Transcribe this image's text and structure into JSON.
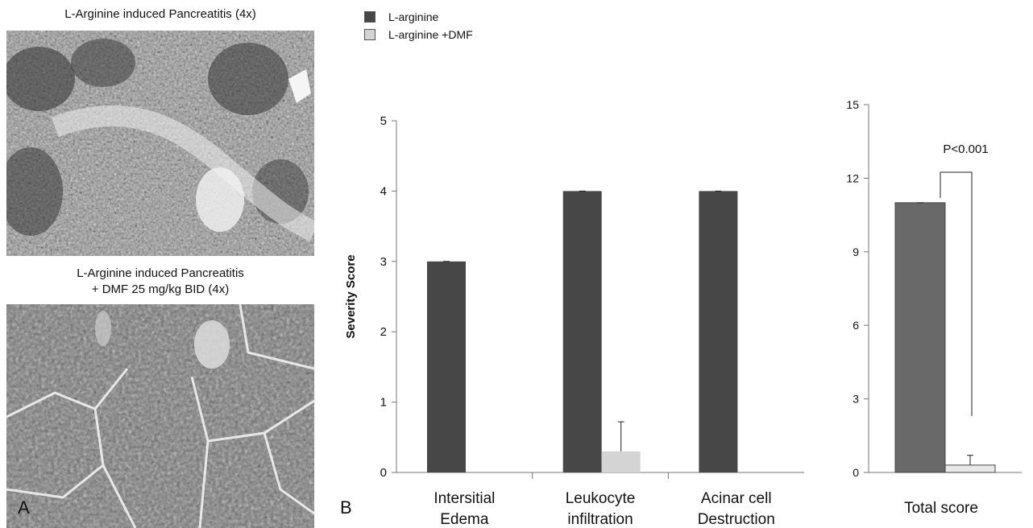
{
  "panel_a": {
    "image1_caption": "L-Arginine induced Pancreatitis (4x)",
    "image2_caption_line1": "L-Arginine induced Pancreatitis",
    "image2_caption_line2": "+ DMF 25 mg/kg BID (4x)",
    "letter": "A"
  },
  "panel_b": {
    "letter": "B"
  },
  "legend": [
    {
      "label": "L-arginine",
      "color": "#474747"
    },
    {
      "label": "L-arginine +DMF",
      "color": "#d4d4d4"
    }
  ],
  "chart_data": [
    {
      "type": "bar",
      "ylabel": "Severity Score",
      "ylim": [
        0,
        5
      ],
      "yticks": [
        "0",
        "1",
        "2",
        "3",
        "4",
        "5"
      ],
      "categories": [
        [
          "Intersitial",
          "Edema"
        ],
        [
          "Leukocyte",
          "infiltration"
        ],
        [
          "Acinar cell",
          "Destruction"
        ]
      ],
      "series": [
        {
          "name": "L-arginine",
          "color": "#474747",
          "values": [
            3,
            4,
            4
          ],
          "errors": [
            0,
            0,
            0
          ]
        },
        {
          "name": "L-arginine +DMF",
          "color": "#d4d4d4",
          "values": [
            0,
            0.3,
            0
          ],
          "errors": [
            0,
            0.42,
            0
          ]
        }
      ],
      "grid": false
    },
    {
      "type": "bar",
      "ylim": [
        0,
        15
      ],
      "yticks": [
        "0",
        "3",
        "6",
        "9",
        "12",
        "15"
      ],
      "categories": [
        "Total score"
      ],
      "series": [
        {
          "name": "L-arginine",
          "color": "#696969",
          "values": [
            11
          ],
          "errors": [
            0
          ]
        },
        {
          "name": "L-arginine +DMF",
          "color": "#e8e8e8",
          "values": [
            0.3
          ],
          "errors": [
            0.4
          ]
        }
      ],
      "annotation": "P<0.001",
      "grid": false
    }
  ]
}
